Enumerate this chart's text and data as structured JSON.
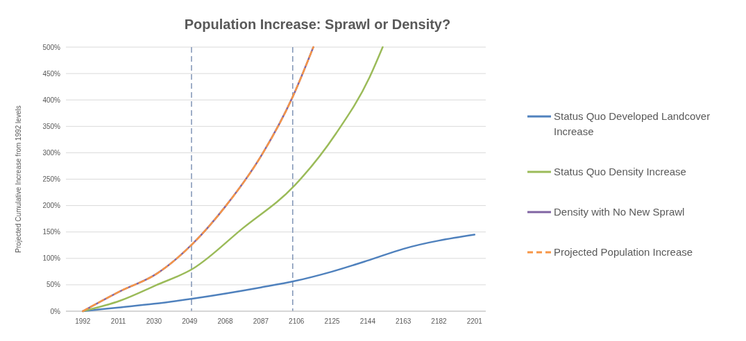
{
  "chart_data": {
    "type": "line",
    "title": "Population Increase: Sprawl or Density?",
    "ylabel": "Projected Cumulative Increase from 1992 levels",
    "xlim": [
      1983,
      2207
    ],
    "xticks": [
      1992,
      2011,
      2030,
      2049,
      2068,
      2087,
      2106,
      2125,
      2144,
      2163,
      2182,
      2201
    ],
    "ylim": [
      0,
      500
    ],
    "yticks": [
      {
        "value": 0,
        "label": "0%"
      },
      {
        "value": 50,
        "label": "50%"
      },
      {
        "value": 100,
        "label": "100%"
      },
      {
        "value": 150,
        "label": "150%"
      },
      {
        "value": 200,
        "label": "200%"
      },
      {
        "value": 250,
        "label": "250%"
      },
      {
        "value": 300,
        "label": "300%"
      },
      {
        "value": 350,
        "label": "350%"
      },
      {
        "value": 400,
        "label": "400%"
      },
      {
        "value": 450,
        "label": "450%"
      },
      {
        "value": 500,
        "label": "500%"
      }
    ],
    "grid": "y",
    "legend": "right",
    "marker": "none",
    "ref_lines": [
      {
        "axis": "x",
        "value": 2050,
        "color": "#7f93b5",
        "line_style": "dashed"
      },
      {
        "axis": "x",
        "value": 2104,
        "color": "#7f93b5",
        "line_style": "dashed"
      }
    ],
    "series": [
      {
        "name": "Status Quo Developed Landcover Increase",
        "color": "#4f81bd",
        "x": [
          1992,
          2011,
          2030,
          2051,
          2087,
          2105,
          2125,
          2145,
          2163,
          2201
        ],
        "values": [
          0,
          7,
          14,
          24,
          45,
          57,
          75,
          97,
          118,
          145
        ]
      },
      {
        "name": "Status Quo Density Increase",
        "color": "#9bbb59",
        "x": [
          1992,
          2012,
          2031,
          2051,
          2077,
          2105,
          2127,
          2145,
          2152
        ],
        "values": [
          0,
          20,
          49,
          81,
          156,
          238,
          336,
          443,
          500
        ]
      },
      {
        "name": "Density with No New Sprawl",
        "color": "#8064a2",
        "x": [
          1992,
          2012,
          2031,
          2051,
          2068,
          2088,
          2104,
          2115
        ],
        "values": [
          0,
          38,
          70,
          129,
          198,
          299,
          406,
          500
        ]
      },
      {
        "name": "Projected Population Increase",
        "color": "#f79646",
        "line_style": "dashed",
        "x": [
          1992,
          2012,
          2031,
          2051,
          2068,
          2088,
          2104,
          2115
        ],
        "values": [
          0,
          38,
          70,
          129,
          198,
          299,
          406,
          500
        ]
      }
    ]
  }
}
